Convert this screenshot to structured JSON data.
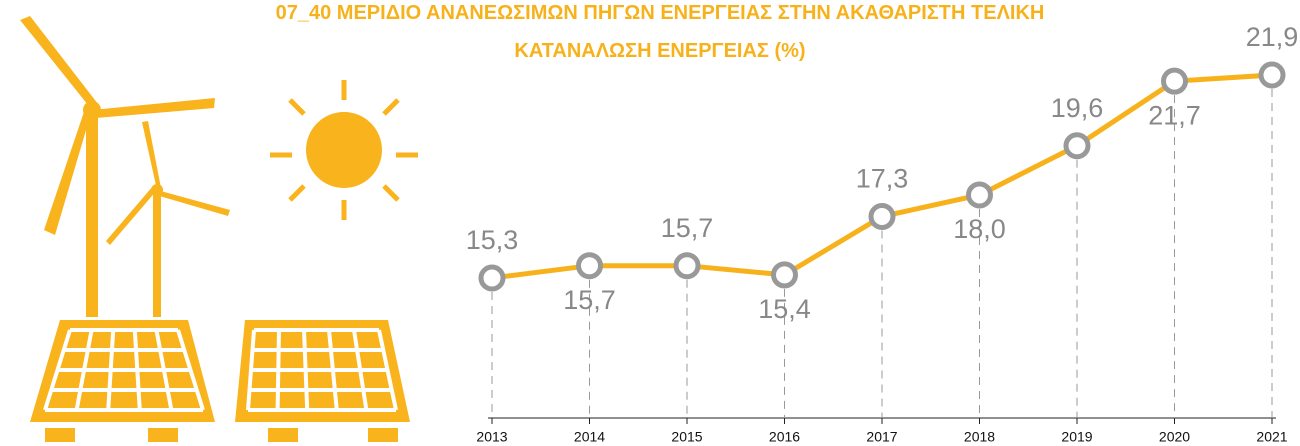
{
  "chart_data": {
    "type": "line",
    "title": "07_40 ΜΕΡΙΔΙΟ ΑΝΑΝΕΩΣΙΜΩΝ ΠΗΓΩΝ ΕΝΕΡΓΕΙΑΣ ΣΤΗΝ ΑΚΑΘΑΡΙΣΤΗ ΤΕΛΙΚΗ ΚΑΤΑΝΑΛΩΣΗ ΕΝΕΡΓΕΙΑΣ (%)",
    "categories": [
      "2013",
      "2014",
      "2015",
      "2016",
      "2017",
      "2018",
      "2019",
      "2020",
      "2021"
    ],
    "values": [
      15.3,
      15.7,
      15.7,
      15.4,
      17.3,
      18.0,
      19.6,
      21.7,
      21.9
    ],
    "value_labels": [
      "15,3",
      "15,7",
      "15,7",
      "15,4",
      "17,3",
      "18,0",
      "19,6",
      "21,7",
      "21,9"
    ],
    "color": "#f7b21b",
    "marker_color": "#999999"
  }
}
